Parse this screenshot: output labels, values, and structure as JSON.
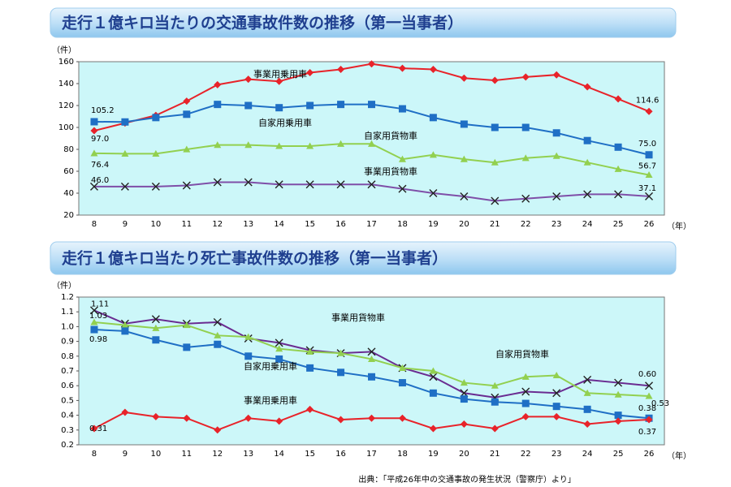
{
  "chart_data": [
    {
      "type": "line",
      "title": "走行１億キロ当たりの交通事故件数の推移（第一当事者）",
      "y_unit": "（件）",
      "x_unit": "（年）",
      "categories": [
        "8",
        "9",
        "10",
        "11",
        "12",
        "13",
        "14",
        "15",
        "16",
        "17",
        "18",
        "19",
        "20",
        "21",
        "22",
        "23",
        "24",
        "25",
        "26"
      ],
      "ylim": [
        20,
        160
      ],
      "yticks": [
        20,
        40,
        60,
        80,
        100,
        120,
        140,
        160
      ],
      "grid": false,
      "series": [
        {
          "name": "事業用乗用車",
          "color": "#e8232a",
          "marker": "diamond",
          "values": [
            97.0,
            104,
            111,
            124,
            139,
            144,
            142,
            150,
            153,
            158,
            154,
            153,
            145,
            143,
            146,
            148,
            137,
            126,
            114.6
          ],
          "value_labels": [
            "97.0",
            null,
            null,
            null,
            null,
            null,
            null,
            null,
            null,
            null,
            null,
            null,
            null,
            null,
            null,
            null,
            null,
            null,
            "114.6"
          ]
        },
        {
          "name": "自家用乗用車",
          "color": "#1f6fc5",
          "marker": "square",
          "values": [
            105.2,
            105,
            109,
            112,
            121,
            120,
            118,
            120,
            121,
            121,
            117,
            109,
            103,
            100,
            100,
            95,
            88,
            82,
            75.0
          ],
          "value_labels": [
            "105.2",
            null,
            null,
            null,
            null,
            null,
            null,
            null,
            null,
            null,
            null,
            null,
            null,
            null,
            null,
            null,
            null,
            null,
            "75.0"
          ]
        },
        {
          "name": "自家用貨物車",
          "color": "#92d050",
          "marker": "triangle",
          "values": [
            76.4,
            76,
            76,
            80,
            84,
            84,
            83,
            83,
            85,
            85,
            71,
            75,
            71,
            68,
            72,
            74,
            68,
            62,
            56.7
          ],
          "value_labels": [
            "76.4",
            null,
            null,
            null,
            null,
            null,
            null,
            null,
            null,
            null,
            null,
            null,
            null,
            null,
            null,
            null,
            null,
            null,
            "56.7"
          ]
        },
        {
          "name": "事業用貨物車",
          "color": "#7f4fa8",
          "marker": "cross",
          "values": [
            46.0,
            46,
            46,
            47,
            50,
            50,
            48,
            48,
            48,
            48,
            44,
            40,
            37,
            33,
            35,
            37,
            39,
            39,
            37.1
          ],
          "value_labels": [
            "46.0",
            null,
            null,
            null,
            null,
            null,
            null,
            null,
            null,
            null,
            null,
            null,
            null,
            null,
            null,
            null,
            null,
            null,
            "37.1"
          ]
        }
      ]
    },
    {
      "type": "line",
      "title": "走行１億キロ当たり死亡事故件数の推移（第一当事者）",
      "y_unit": "（件）",
      "x_unit": "（年）",
      "categories": [
        "8",
        "9",
        "10",
        "11",
        "12",
        "13",
        "14",
        "15",
        "16",
        "17",
        "18",
        "19",
        "20",
        "21",
        "22",
        "23",
        "24",
        "25",
        "26"
      ],
      "ylim": [
        0.2,
        1.2
      ],
      "yticks": [
        0.2,
        0.3,
        0.4,
        0.5,
        0.6,
        0.7,
        0.8,
        0.9,
        {
          "value": 1,
          "label": "1.0"
        },
        1.1,
        1.2
      ],
      "grid": false,
      "series": [
        {
          "name": "事業用貨物車",
          "color": "#6a2c91",
          "marker": "cross",
          "values": [
            1.11,
            1.02,
            1.05,
            1.02,
            1.03,
            0.92,
            0.89,
            0.84,
            0.82,
            0.83,
            0.72,
            0.66,
            0.55,
            0.52,
            0.56,
            0.55,
            0.64,
            0.62,
            0.6
          ],
          "value_labels": [
            "1.11",
            null,
            null,
            null,
            null,
            null,
            null,
            null,
            null,
            null,
            null,
            null,
            null,
            null,
            null,
            null,
            null,
            null,
            "0.60"
          ]
        },
        {
          "name": "自家用貨物車",
          "color": "#92d050",
          "marker": "triangle",
          "values": [
            1.03,
            1.01,
            0.99,
            1.01,
            0.94,
            0.93,
            0.85,
            0.83,
            0.82,
            0.78,
            0.72,
            0.7,
            0.62,
            0.6,
            0.66,
            0.67,
            0.55,
            0.54,
            0.53
          ],
          "value_labels": [
            "1.03",
            null,
            null,
            null,
            null,
            null,
            null,
            null,
            null,
            null,
            null,
            null,
            null,
            null,
            null,
            null,
            null,
            null,
            "0.53"
          ]
        },
        {
          "name": "自家用乗用車",
          "color": "#1f6fc5",
          "marker": "square",
          "values": [
            0.98,
            0.97,
            0.91,
            0.86,
            0.88,
            0.8,
            0.78,
            0.72,
            0.69,
            0.66,
            0.62,
            0.55,
            0.51,
            0.49,
            0.48,
            0.46,
            0.44,
            0.4,
            0.38
          ],
          "value_labels": [
            "0.98",
            null,
            null,
            null,
            null,
            null,
            null,
            null,
            null,
            null,
            null,
            null,
            null,
            null,
            null,
            null,
            null,
            null,
            "0.38"
          ]
        },
        {
          "name": "事業用乗用車",
          "color": "#e8232a",
          "marker": "diamond",
          "values": [
            0.31,
            0.42,
            0.39,
            0.38,
            0.3,
            0.38,
            0.36,
            0.44,
            0.37,
            0.38,
            0.38,
            0.31,
            0.34,
            0.31,
            0.39,
            0.39,
            0.34,
            0.36,
            0.37
          ],
          "value_labels": [
            "0.31",
            null,
            null,
            null,
            null,
            null,
            null,
            null,
            null,
            null,
            null,
            null,
            null,
            null,
            null,
            null,
            null,
            null,
            "0.37"
          ]
        }
      ]
    }
  ],
  "source": "出典：「平成26年中の交通事故の発生状況（警察庁）より」"
}
